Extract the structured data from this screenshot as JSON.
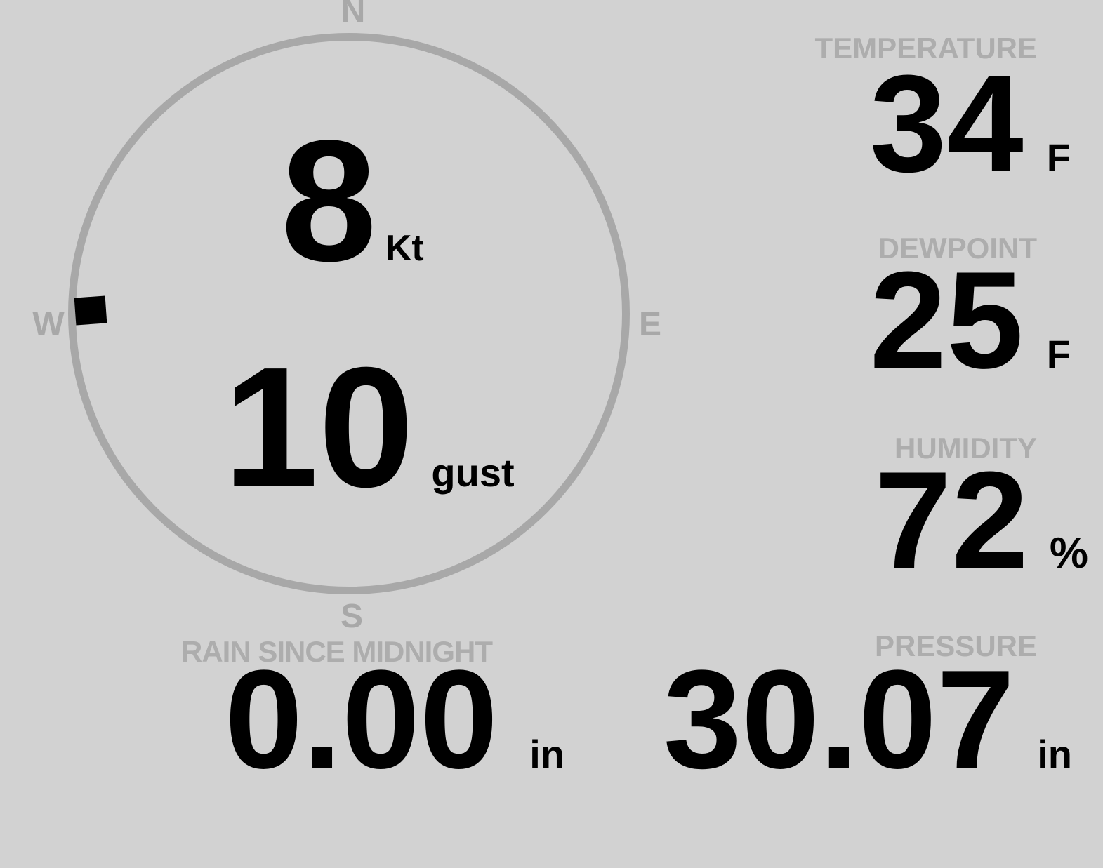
{
  "colors": {
    "background": "#d2d2d2",
    "dial": "#a8a8a8",
    "label": "#adadad",
    "value": "#000000"
  },
  "wind": {
    "speed_value": "8",
    "speed_unit": "Kt",
    "gust_value": "10",
    "gust_unit": "gust",
    "direction_cardinal": "W",
    "compass": {
      "n": "N",
      "e": "E",
      "s": "S",
      "w": "W"
    }
  },
  "metrics": {
    "temperature": {
      "label": "TEMPERATURE",
      "value": "34",
      "unit": "F"
    },
    "dewpoint": {
      "label": "DEWPOINT",
      "value": "25",
      "unit": "F"
    },
    "humidity": {
      "label": "HUMIDITY",
      "value": "72",
      "unit": "%"
    },
    "rain_since_midnight": {
      "label": "RAIN SINCE MIDNIGHT",
      "value": "0.00",
      "unit": "in"
    },
    "pressure": {
      "label": "PRESSURE",
      "value": "30.07",
      "unit": "in"
    }
  }
}
